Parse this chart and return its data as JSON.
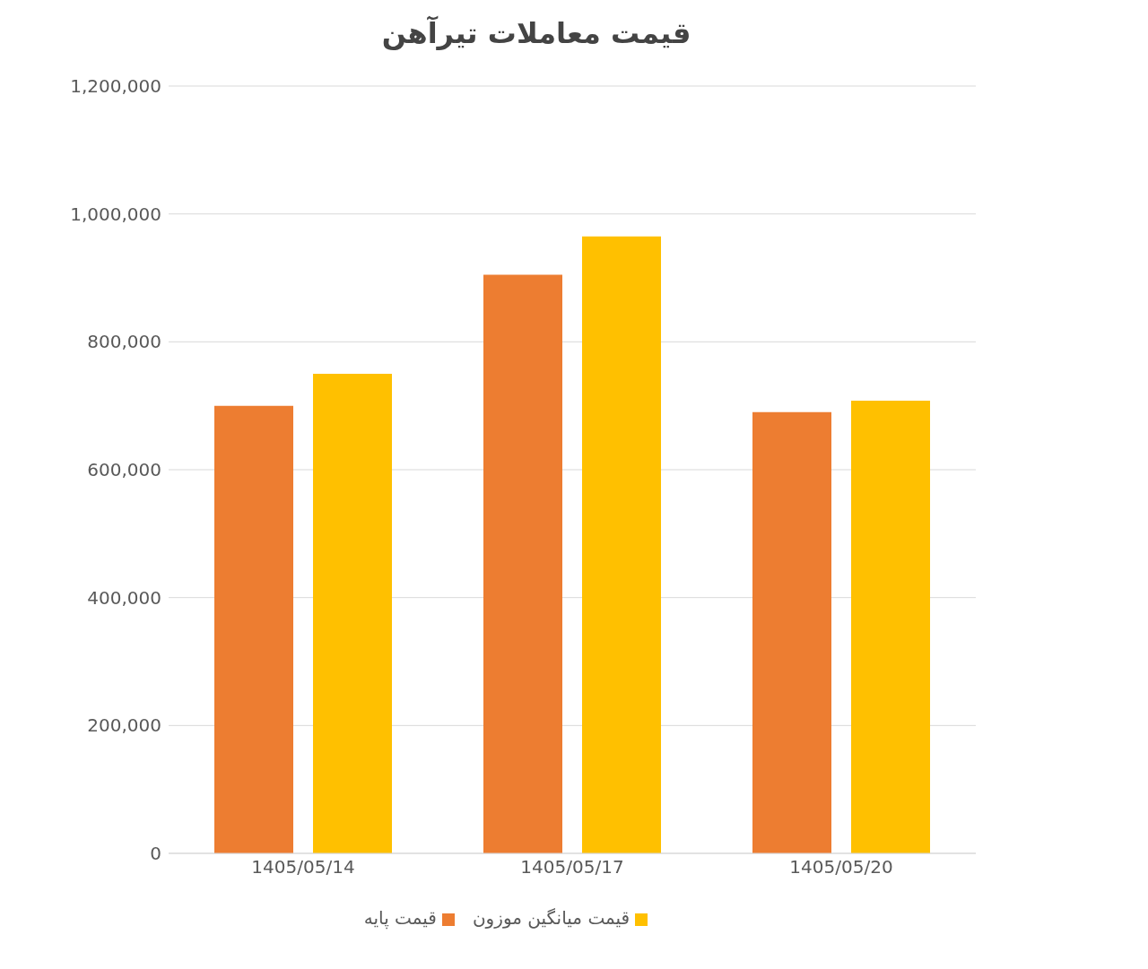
{
  "chart_data": {
    "type": "bar",
    "title": "قیمت معاملات تیرآهن",
    "categories": [
      "1405/05/14",
      "1405/05/17",
      "1405/05/20"
    ],
    "series": [
      {
        "name": "قیمت پایه",
        "color": "#ed7d31",
        "values": [
          700000,
          905000,
          690000
        ]
      },
      {
        "name": "قیمت میانگین موزون",
        "color": "#ffc000",
        "values": [
          750000,
          965000,
          708000
        ]
      }
    ],
    "ylim": [
      0,
      1200000
    ],
    "yticks": [
      0,
      {
        "value": 200000,
        "label": "200,000"
      },
      {
        "value": 400000,
        "label": "400,000"
      },
      {
        "value": 600000,
        "label": "600,000"
      },
      {
        "value": 800000,
        "label": "800,000"
      },
      {
        "value": 1000000,
        "label": "1,000,000"
      },
      {
        "value": 1200000,
        "label": "1,200,000"
      }
    ],
    "grid": "y",
    "legend": "bottom"
  }
}
